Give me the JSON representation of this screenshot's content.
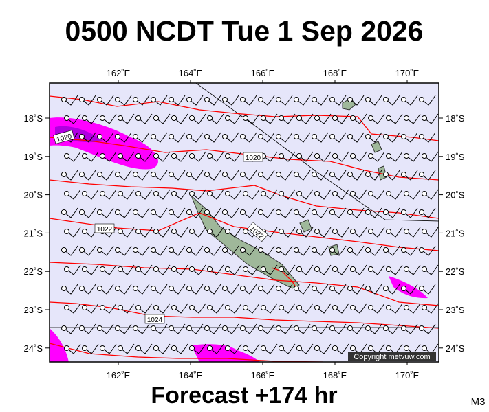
{
  "title": "0500 NCDT Tue 1 Sep 2026",
  "map": {
    "lon_labels": [
      "162˚E",
      "164˚E",
      "166˚E",
      "168˚E",
      "170˚E"
    ],
    "lat_labels": [
      "18˚S",
      "19˚S",
      "20˚S",
      "21˚S",
      "22˚S",
      "23˚S",
      "24˚S"
    ],
    "isobar_labels": [
      "1020",
      "1020",
      "1022",
      "1022",
      "1024"
    ],
    "copyright": "Copyright metvuw.com"
  },
  "footer": {
    "forecast": "Forecast +174 hr",
    "model": "M3"
  }
}
